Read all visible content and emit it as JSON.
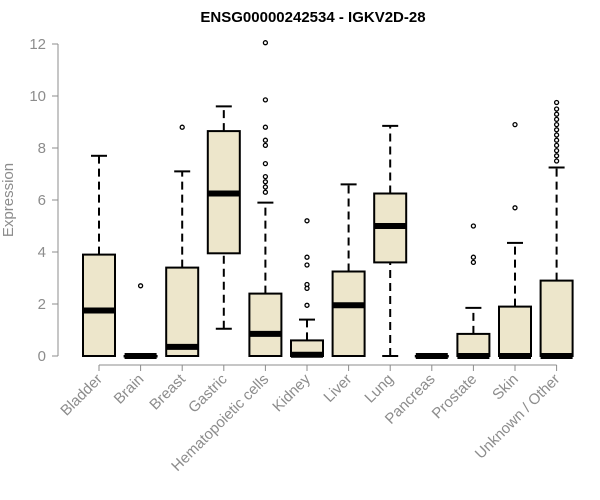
{
  "chart_data": {
    "type": "boxplot",
    "title": "ENSG00000242534 - IGKV2D-28",
    "xlabel": "",
    "ylabel": "Expression",
    "ylim": [
      0,
      12
    ],
    "yticks": [
      0,
      2,
      4,
      6,
      8,
      10,
      12
    ],
    "grid": false,
    "categories": [
      "Bladder",
      "Brain",
      "Breast",
      "Gastric",
      "Hematopoietic cells",
      "Kidney",
      "Liver",
      "Lung",
      "Pancreas",
      "Prostate",
      "Skin",
      "Unknown / Other"
    ],
    "boxes": [
      {
        "name": "Bladder",
        "min": 0,
        "q1": 0,
        "median": 1.75,
        "q3": 3.9,
        "max": 7.7,
        "outliers": []
      },
      {
        "name": "Brain",
        "min": 0,
        "q1": 0,
        "median": 0,
        "q3": 0,
        "max": 0,
        "outliers": [
          2.7
        ]
      },
      {
        "name": "Breast",
        "min": 0,
        "q1": 0,
        "median": 0.35,
        "q3": 3.4,
        "max": 7.1,
        "outliers": [
          8.8
        ]
      },
      {
        "name": "Gastric",
        "min": 1.05,
        "q1": 3.95,
        "median": 6.25,
        "q3": 8.65,
        "max": 9.6,
        "outliers": []
      },
      {
        "name": "Hematopoietic cells",
        "min": 0,
        "q1": 0,
        "median": 0.85,
        "q3": 2.4,
        "max": 5.9,
        "outliers": [
          6.3,
          6.5,
          6.7,
          6.9,
          7.4,
          8.1,
          8.3,
          8.8,
          9.85,
          12.05
        ]
      },
      {
        "name": "Kidney",
        "min": 0,
        "q1": 0,
        "median": 0.05,
        "q3": 0.6,
        "max": 1.4,
        "outliers": [
          1.95,
          2.6,
          2.75,
          3.5,
          3.8,
          5.2
        ]
      },
      {
        "name": "Liver",
        "min": 0,
        "q1": 0,
        "median": 1.95,
        "q3": 3.25,
        "max": 6.6,
        "outliers": []
      },
      {
        "name": "Lung",
        "min": 0,
        "q1": 3.6,
        "median": 5.0,
        "q3": 6.25,
        "max": 8.85,
        "outliers": []
      },
      {
        "name": "Pancreas",
        "min": 0,
        "q1": 0,
        "median": 0,
        "q3": 0,
        "max": 0,
        "outliers": []
      },
      {
        "name": "Prostate",
        "min": 0,
        "q1": 0,
        "median": 0,
        "q3": 0.85,
        "max": 1.85,
        "outliers": [
          3.6,
          3.8,
          5.0
        ]
      },
      {
        "name": "Skin",
        "min": 0,
        "q1": 0,
        "median": 0,
        "q3": 1.9,
        "max": 4.35,
        "outliers": [
          5.7,
          8.9
        ]
      },
      {
        "name": "Unknown / Other",
        "min": 0,
        "q1": 0,
        "median": 0,
        "q3": 2.9,
        "max": 7.25,
        "outliers": [
          7.5,
          7.7,
          7.9,
          8.1,
          8.3,
          8.5,
          8.7,
          8.9,
          9.1,
          9.3,
          9.5,
          9.75
        ]
      }
    ],
    "colors": {
      "box_fill": "#ede6cb",
      "box_stroke": "#000000",
      "axis": "#8c8c8c",
      "title": "#000000"
    }
  }
}
